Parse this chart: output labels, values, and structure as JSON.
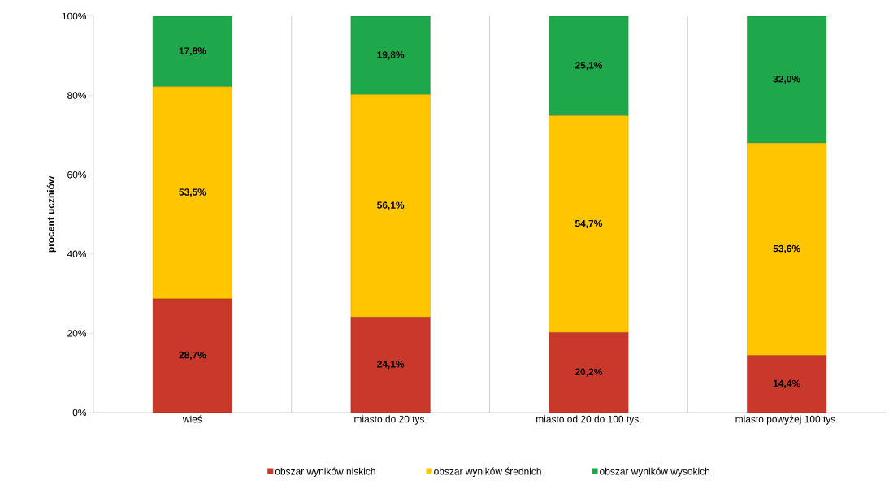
{
  "chart_data": {
    "type": "bar",
    "stacked": true,
    "ylabel": "procent uczniów",
    "categories": [
      "wieś",
      "miasto do 20 tys.",
      "miasto od 20 do 100 tys.",
      "miasto powyżej 100 tys."
    ],
    "series": [
      {
        "name": "obszar wyników niskich",
        "color": "#c9382a",
        "values": [
          28.7,
          24.1,
          20.2,
          14.4
        ],
        "value_labels": [
          "28,7%",
          "24,1%",
          "20,2%",
          "14,4%"
        ]
      },
      {
        "name": "obszar wyników średnich",
        "color": "#ffc600",
        "values": [
          53.5,
          56.1,
          54.7,
          53.6
        ],
        "value_labels": [
          "53,5%",
          "56,1%",
          "54,7%",
          "53,6%"
        ]
      },
      {
        "name": "obszar wyników wysokich",
        "color": "#1fa84b",
        "values": [
          17.8,
          19.8,
          25.1,
          32.0
        ],
        "value_labels": [
          "17,8%",
          "19,8%",
          "25,1%",
          "32,0%"
        ]
      }
    ],
    "ylim": [
      0,
      100
    ],
    "yticks": [
      {
        "value": 0,
        "label": "0%"
      },
      {
        "value": 20,
        "label": "20%"
      },
      {
        "value": 40,
        "label": "40%"
      },
      {
        "value": 60,
        "label": "60%"
      },
      {
        "value": 80,
        "label": "80%"
      },
      {
        "value": 100,
        "label": "100%"
      }
    ],
    "grid": "x",
    "legend": "bottom"
  }
}
